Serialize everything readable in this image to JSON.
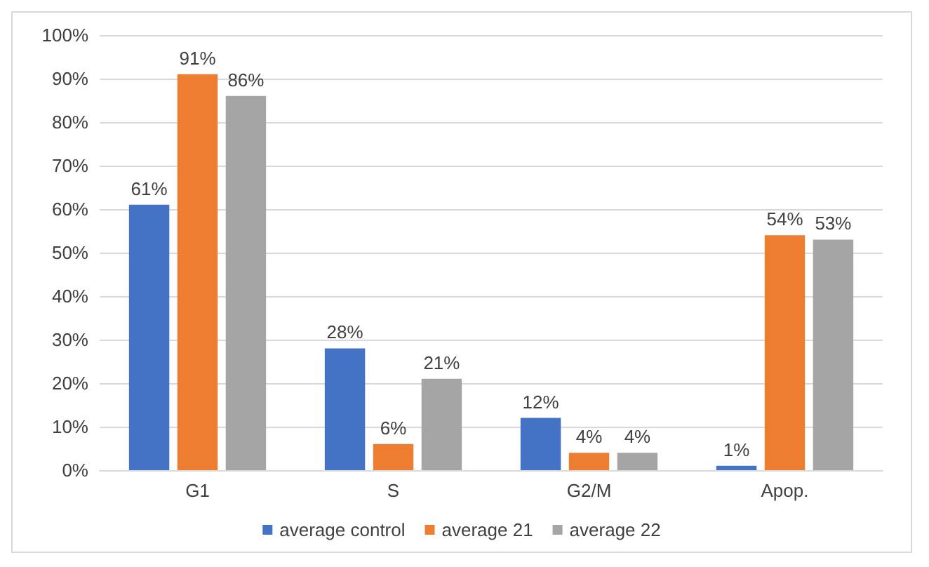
{
  "chart_data": {
    "type": "bar",
    "categories": [
      "G1",
      "S",
      "G2/M",
      "Apop."
    ],
    "series": [
      {
        "name": "average control",
        "color": "#4472c4",
        "values": [
          61,
          28,
          12,
          1
        ],
        "value_labels": [
          "61%",
          "28%",
          "12%",
          "1%"
        ]
      },
      {
        "name": "average 21",
        "color": "#ed7d31",
        "values": [
          91,
          6,
          4,
          54
        ],
        "value_labels": [
          "91%",
          "6%",
          "4%",
          "54%"
        ]
      },
      {
        "name": "average 22",
        "color": "#a5a5a5",
        "values": [
          86,
          21,
          4,
          53
        ],
        "value_labels": [
          "86%",
          "21%",
          "4%",
          "53%"
        ]
      }
    ],
    "ylim": [
      0,
      100
    ],
    "yticks": [
      {
        "value": 0,
        "label": "0%"
      },
      {
        "value": 10,
        "label": "10%"
      },
      {
        "value": 20,
        "label": "20%"
      },
      {
        "value": 30,
        "label": "30%"
      },
      {
        "value": 40,
        "label": "40%"
      },
      {
        "value": 50,
        "label": "50%"
      },
      {
        "value": 60,
        "label": "60%"
      },
      {
        "value": 70,
        "label": "70%"
      },
      {
        "value": 80,
        "label": "80%"
      },
      {
        "value": 90,
        "label": "90%"
      },
      {
        "value": 100,
        "label": "100%"
      }
    ],
    "grid": "y",
    "legend": "bottom"
  }
}
